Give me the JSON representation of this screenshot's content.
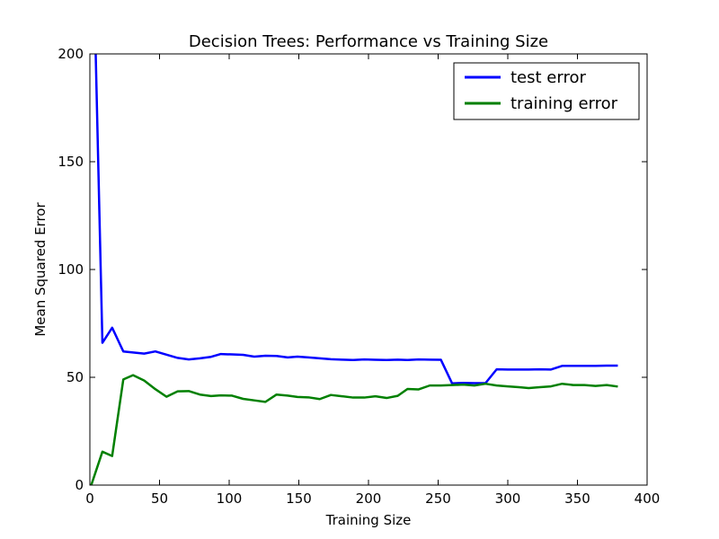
{
  "chart_data": {
    "type": "line",
    "title": "Decision Trees: Performance vs Training Size",
    "xlabel": "Training Size",
    "ylabel": "Mean Squared Error",
    "xlim": [
      0,
      400
    ],
    "ylim": [
      0,
      200
    ],
    "xticks": [
      0,
      50,
      100,
      150,
      200,
      250,
      300,
      350,
      400
    ],
    "yticks": [
      0,
      50,
      100,
      150,
      200
    ],
    "legend_position": "top-right",
    "grid": false,
    "series": [
      {
        "name": "test error",
        "color": "#0000ff",
        "x": [
          4,
          9,
          16,
          24,
          31,
          39,
          47,
          55,
          63,
          71,
          79,
          87,
          94,
          102,
          110,
          118,
          126,
          134,
          142,
          149,
          157,
          165,
          173,
          181,
          189,
          197,
          205,
          213,
          221,
          228,
          236,
          244,
          252,
          260,
          268,
          276,
          284,
          292,
          300,
          308,
          315,
          323,
          331,
          339,
          347,
          355,
          363,
          371,
          379
        ],
        "y": [
          205,
          66,
          73,
          62,
          61.5,
          61,
          62,
          60.5,
          59,
          58.3,
          58.8,
          59.5,
          60.8,
          60.6,
          60.4,
          59.6,
          60,
          59.9,
          59.2,
          59.6,
          59.2,
          58.8,
          58.4,
          58.2,
          58,
          58.3,
          58.1,
          58,
          58.2,
          58,
          58.3,
          58.2,
          58.1,
          47.2,
          47.4,
          47.3,
          47.3,
          53.7,
          53.6,
          53.6,
          53.6,
          53.7,
          53.6,
          55.3,
          55.3,
          55.3,
          55.3,
          55.4,
          55.4
        ]
      },
      {
        "name": "training error",
        "color": "#008000",
        "x": [
          1,
          9,
          16,
          24,
          31,
          39,
          47,
          55,
          63,
          71,
          79,
          87,
          94,
          102,
          110,
          118,
          126,
          134,
          142,
          149,
          157,
          165,
          173,
          181,
          189,
          197,
          205,
          213,
          221,
          228,
          236,
          244,
          252,
          260,
          268,
          276,
          284,
          292,
          300,
          308,
          315,
          323,
          331,
          339,
          347,
          355,
          363,
          371,
          379
        ],
        "y": [
          0,
          15.5,
          13.5,
          49,
          51,
          48.5,
          44.5,
          41,
          43.5,
          43.6,
          42,
          41.3,
          41.6,
          41.5,
          40,
          39.3,
          38.6,
          42,
          41.5,
          40.9,
          40.7,
          39.9,
          41.8,
          41.2,
          40.6,
          40.6,
          41.2,
          40.4,
          41.4,
          44.6,
          44.4,
          46.2,
          46.2,
          46.4,
          46.6,
          46.2,
          47,
          46.2,
          45.8,
          45.4,
          45,
          45.4,
          45.8,
          47,
          46.4,
          46.4,
          46,
          46.4,
          45.7
        ]
      }
    ]
  }
}
